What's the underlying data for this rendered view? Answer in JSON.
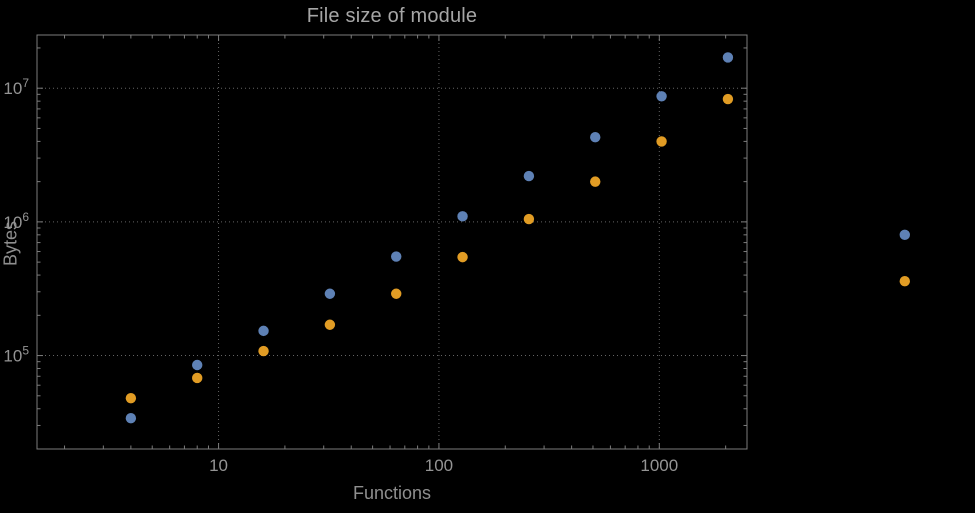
{
  "colors": {
    "background": "#000000",
    "frame": "#7d7d7d",
    "grid": "#646464",
    "title_text": "#a6a6a6",
    "label_text": "#8f8f8f",
    "tick_label_text": "#949494",
    "series_blue": "#5E81B5",
    "series_orange": "#E19C24"
  },
  "chart_data": {
    "type": "scatter",
    "title": "File size of module",
    "xlabel": "Functions",
    "ylabel": "Bytes",
    "x_scale": "log",
    "y_scale": "log",
    "xlim": [
      1.5,
      2500
    ],
    "ylim": [
      20000,
      25000000
    ],
    "xticks": [
      10,
      100,
      1000
    ],
    "xtick_labels": [
      "10",
      "100",
      "1000"
    ],
    "yticks": [
      100000,
      1000000,
      10000000
    ],
    "ytick_base": "10",
    "ytick_exponents": [
      5,
      6,
      7
    ],
    "grid": "dotted",
    "legend": "none",
    "clip_points": false,
    "series": [
      {
        "name": "series-1-blue",
        "color": "#5E81B5",
        "points": [
          [
            4,
            34000
          ],
          [
            8,
            85000
          ],
          [
            16,
            153000
          ],
          [
            32,
            290000
          ],
          [
            64,
            550000
          ],
          [
            128,
            1100000
          ],
          [
            256,
            2200000
          ],
          [
            512,
            4300000
          ],
          [
            1024,
            8700000
          ],
          [
            2048,
            17000000
          ],
          [
            13000,
            800000
          ]
        ]
      },
      {
        "name": "series-2-orange",
        "color": "#E19C24",
        "points": [
          [
            4,
            48000
          ],
          [
            8,
            68000
          ],
          [
            16,
            108000
          ],
          [
            32,
            170000
          ],
          [
            64,
            290000
          ],
          [
            128,
            545000
          ],
          [
            256,
            1050000
          ],
          [
            512,
            2000000
          ],
          [
            1024,
            4000000
          ],
          [
            2048,
            8300000
          ],
          [
            13000,
            360000
          ]
        ]
      }
    ]
  }
}
